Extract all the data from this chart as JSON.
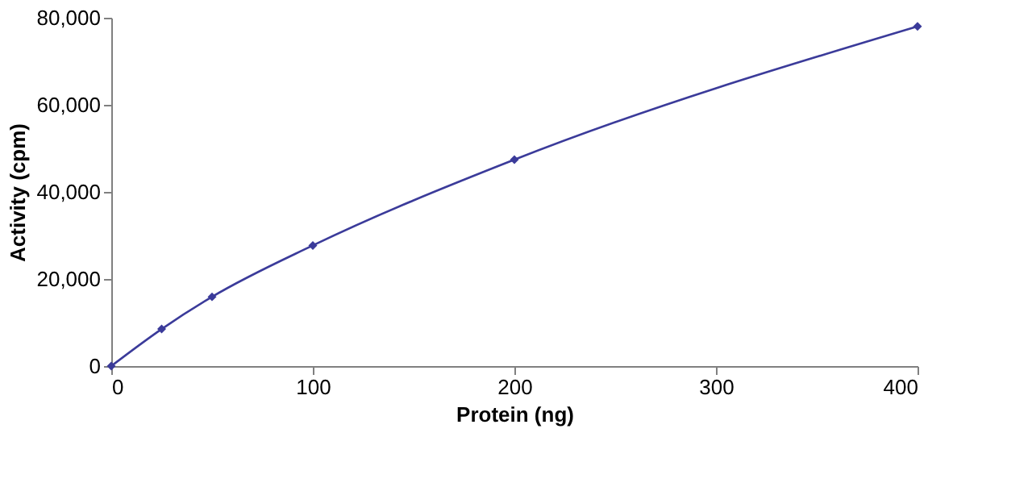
{
  "chart_data": {
    "type": "line",
    "xlabel": "Protein (ng)",
    "ylabel": "Activity (cpm)",
    "x": [
      0,
      25,
      50,
      100,
      200,
      400
    ],
    "series": [
      {
        "color": "#3b3b9a",
        "values": [
          0,
          8500,
          15900,
          27700,
          47400,
          78000
        ]
      }
    ],
    "xlim": [
      0,
      400
    ],
    "xticks": [
      0,
      100,
      200,
      300,
      400
    ],
    "ylim": [
      0,
      80000
    ],
    "yticks": [
      0,
      {
        "value": 20000,
        "label": "20,000"
      },
      {
        "value": 40000,
        "label": "40,000"
      },
      {
        "value": 60000,
        "label": "60,000"
      },
      {
        "value": 80000,
        "label": "80,000"
      }
    ],
    "marker": "diamond",
    "line_style": "solid",
    "grid": false,
    "legend": false
  }
}
